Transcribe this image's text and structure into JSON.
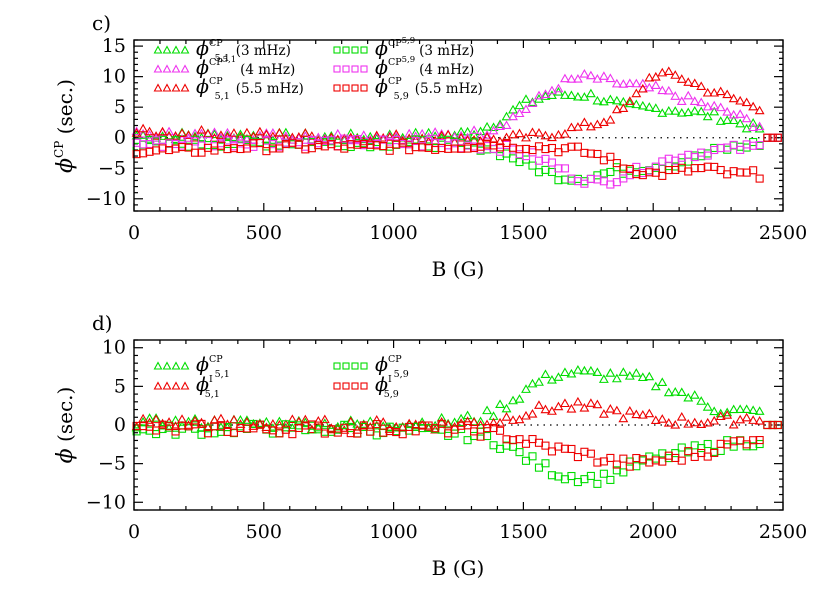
{
  "chart_data": [
    {
      "type": "scatter",
      "panel_label": "c)",
      "xlabel": "B (G)",
      "ylabel": {
        "phi": "ϕ",
        "sup": "CP",
        "rest": " (sec.)"
      },
      "xlim": [
        0,
        2500
      ],
      "ylim": [
        -12,
        16
      ],
      "xticks": [
        0,
        500,
        1000,
        1500,
        2000,
        2500
      ],
      "yticks": [
        -10,
        -5,
        0,
        5,
        10,
        15
      ],
      "ytick_labels": [
        "−10",
        "−5",
        "0",
        "5",
        "10",
        "15"
      ],
      "zero_line": "dotted",
      "legend": "top-left, two columns",
      "series": [
        {
          "symbol_text": "ϕ",
          "sup": "CP",
          "sub": "5,1",
          "sub_sup": "",
          "freq": "(3 mHz)",
          "color": "#00dd00",
          "marker": "triangle",
          "knots": [
            [
              0,
              0.3
            ],
            [
              400,
              0.3
            ],
            [
              800,
              0
            ],
            [
              1200,
              0.3
            ],
            [
              1300,
              0.8
            ],
            [
              1400,
              2.5
            ],
            [
              1500,
              5.5
            ],
            [
              1600,
              7
            ],
            [
              1750,
              7
            ],
            [
              1900,
              5
            ],
            [
              2100,
              4.5
            ],
            [
              2250,
              3.5
            ],
            [
              2400,
              1.5
            ]
          ]
        },
        {
          "symbol_text": "ϕ",
          "sup": "CP",
          "sub": "",
          "sub_sup": "5,1",
          "freq": "(4 mHz)",
          "color": "#ee33ee",
          "marker": "triangle",
          "knots": [
            [
              0,
              0.5
            ],
            [
              400,
              0.3
            ],
            [
              800,
              0.2
            ],
            [
              1200,
              0.3
            ],
            [
              1350,
              0.8
            ],
            [
              1450,
              3
            ],
            [
              1550,
              6
            ],
            [
              1650,
              9
            ],
            [
              1750,
              10
            ],
            [
              1850,
              9
            ],
            [
              2000,
              8
            ],
            [
              2150,
              6
            ],
            [
              2300,
              4
            ],
            [
              2400,
              2
            ]
          ]
        },
        {
          "symbol_text": "ϕ",
          "sup": "CP",
          "sub": "5,1",
          "sub_sup": "",
          "freq": "(5.5 mHz)",
          "color": "#ee0000",
          "marker": "triangle",
          "knots": [
            [
              0,
              0.8
            ],
            [
              400,
              0.5
            ],
            [
              800,
              0
            ],
            [
              1200,
              0
            ],
            [
              1400,
              -0.3
            ],
            [
              1600,
              0.5
            ],
            [
              1700,
              1.5
            ],
            [
              1800,
              2.5
            ],
            [
              1900,
              5
            ],
            [
              2000,
              10.5
            ],
            [
              2100,
              10
            ],
            [
              2200,
              8
            ],
            [
              2300,
              6.5
            ],
            [
              2400,
              5
            ]
          ]
        },
        {
          "symbol_text": "ϕ",
          "sup": "CP",
          "sub": "",
          "sub_sup": "5,9",
          "freq": "(3 mHz)",
          "color": "#00dd00",
          "marker": "square",
          "knots": [
            [
              0,
              -1
            ],
            [
              400,
              -0.8
            ],
            [
              800,
              -0.8
            ],
            [
              1200,
              -1
            ],
            [
              1350,
              -1.5
            ],
            [
              1450,
              -3
            ],
            [
              1550,
              -5
            ],
            [
              1650,
              -6.5
            ],
            [
              1750,
              -6.5
            ],
            [
              1850,
              -5.5
            ],
            [
              1950,
              -5
            ],
            [
              2050,
              -4.5
            ],
            [
              2150,
              -3.5
            ],
            [
              2250,
              -2
            ],
            [
              2400,
              -1
            ]
          ]
        },
        {
          "symbol_text": "ϕ",
          "sup": "CP",
          "sub": "",
          "sub_sup": "5,9",
          "freq": "(4 mHz)",
          "color": "#ee33ee",
          "marker": "square",
          "knots": [
            [
              0,
              -1
            ],
            [
              400,
              -0.8
            ],
            [
              800,
              -0.8
            ],
            [
              1200,
              -1
            ],
            [
              1400,
              -1.5
            ],
            [
              1500,
              -2.5
            ],
            [
              1600,
              -4
            ],
            [
              1700,
              -6.5
            ],
            [
              1800,
              -7.5
            ],
            [
              1900,
              -6
            ],
            [
              2000,
              -4.5
            ],
            [
              2100,
              -3
            ],
            [
              2250,
              -2
            ],
            [
              2400,
              -1.5
            ]
          ]
        },
        {
          "symbol_text": "ϕ",
          "sup": "CP",
          "sub": "5,9",
          "sub_sup": "",
          "freq": "(5.5 mHz)",
          "color": "#ee0000",
          "marker": "square",
          "knots": [
            [
              0,
              -2
            ],
            [
              200,
              -2.2
            ],
            [
              400,
              -1.5
            ],
            [
              800,
              -1.5
            ],
            [
              1200,
              -1.5
            ],
            [
              1400,
              -1
            ],
            [
              1550,
              -1.5
            ],
            [
              1700,
              -2
            ],
            [
              1800,
              -3
            ],
            [
              1900,
              -5
            ],
            [
              2000,
              -6
            ],
            [
              2100,
              -5.5
            ],
            [
              2200,
              -5
            ],
            [
              2300,
              -6
            ],
            [
              2400,
              -6
            ]
          ]
        }
      ]
    },
    {
      "type": "scatter",
      "panel_label": "d)",
      "xlabel": "B (G)",
      "ylabel": {
        "phi": "ϕ",
        "sup": "",
        "rest": " (sec.)"
      },
      "xlim": [
        0,
        2500
      ],
      "ylim": [
        -11,
        11
      ],
      "xticks": [
        0,
        500,
        1000,
        1500,
        2000,
        2500
      ],
      "yticks": [
        -10,
        -5,
        0,
        5,
        10
      ],
      "ytick_labels": [
        "−10",
        "−5",
        "0",
        "5",
        "10"
      ],
      "zero_line": "dotted",
      "legend": "top-left, two columns",
      "series": [
        {
          "symbol_text": "ϕ",
          "sup": "CP",
          "sub": "5,1",
          "sub_sup": "",
          "freq": "",
          "color": "#00dd00",
          "marker": "triangle",
          "knots": [
            [
              0,
              0.2
            ],
            [
              400,
              0.2
            ],
            [
              800,
              0
            ],
            [
              1200,
              0.3
            ],
            [
              1350,
              1
            ],
            [
              1450,
              3
            ],
            [
              1550,
              5.5
            ],
            [
              1650,
              6.8
            ],
            [
              1800,
              6.5
            ],
            [
              1950,
              6
            ],
            [
              2050,
              5
            ],
            [
              2150,
              3.5
            ],
            [
              2250,
              2
            ],
            [
              2400,
              1.5
            ]
          ]
        },
        {
          "symbol_text": "ϕ",
          "sup": "I",
          "sub": "5,1",
          "sub_sup": "",
          "freq": "",
          "color": "#ee0000",
          "marker": "triangle",
          "knots": [
            [
              0,
              0.3
            ],
            [
              400,
              0.2
            ],
            [
              800,
              0
            ],
            [
              1200,
              0
            ],
            [
              1400,
              0.5
            ],
            [
              1500,
              1.5
            ],
            [
              1650,
              2.5
            ],
            [
              1800,
              2
            ],
            [
              1950,
              1
            ],
            [
              2100,
              0.5
            ],
            [
              2250,
              0.5
            ],
            [
              2400,
              1
            ]
          ]
        },
        {
          "symbol_text": "ϕ",
          "sup": "CP",
          "sub": "5,9",
          "sub_sup": "",
          "freq": "",
          "color": "#00dd00",
          "marker": "square",
          "knots": [
            [
              0,
              -0.8
            ],
            [
              400,
              -0.5
            ],
            [
              800,
              -0.5
            ],
            [
              1200,
              -1
            ],
            [
              1350,
              -1.5
            ],
            [
              1450,
              -3
            ],
            [
              1550,
              -5
            ],
            [
              1650,
              -6.5
            ],
            [
              1800,
              -7
            ],
            [
              1900,
              -5.5
            ],
            [
              2050,
              -4
            ],
            [
              2200,
              -3
            ],
            [
              2400,
              -2
            ]
          ]
        },
        {
          "symbol_text": "ϕ",
          "sup": "I",
          "sub": "5,9",
          "sub_sup": "",
          "freq": "",
          "color": "#ee0000",
          "marker": "square",
          "knots": [
            [
              0,
              -0.5
            ],
            [
              400,
              -0.5
            ],
            [
              800,
              -0.5
            ],
            [
              1200,
              -0.5
            ],
            [
              1400,
              -1
            ],
            [
              1500,
              -2
            ],
            [
              1600,
              -3
            ],
            [
              1700,
              -3.5
            ],
            [
              1800,
              -4.5
            ],
            [
              1900,
              -5
            ],
            [
              2050,
              -4.5
            ],
            [
              2200,
              -3.5
            ],
            [
              2400,
              -1.5
            ]
          ]
        }
      ]
    }
  ]
}
